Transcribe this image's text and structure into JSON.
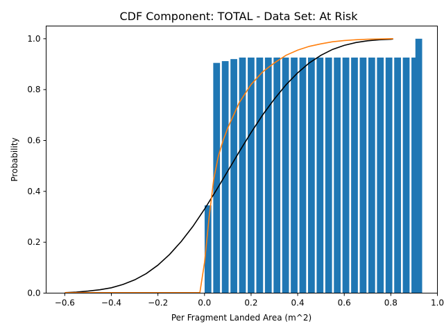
{
  "chart_data": {
    "type": "bar",
    "title": "CDF Component: TOTAL - Data Set: At Risk",
    "xlabel": "Per Fragment Landed Area (m^2)",
    "ylabel": "Probability",
    "xlim": [
      -0.68,
      1.0
    ],
    "ylim": [
      0,
      1.05
    ],
    "x_ticks": [
      -0.6,
      -0.4,
      -0.2,
      0.0,
      0.2,
      0.4,
      0.6,
      0.8,
      1.0
    ],
    "x_tick_labels": [
      "−0.6",
      "−0.4",
      "−0.2",
      "0.0",
      "0.2",
      "0.4",
      "0.6",
      "0.8",
      "1.0"
    ],
    "y_ticks": [
      0.0,
      0.2,
      0.4,
      0.6,
      0.8,
      1.0
    ],
    "y_tick_labels": [
      "0.0",
      "0.2",
      "0.4",
      "0.6",
      "0.8",
      "1.0"
    ],
    "grid": false,
    "bar_color": "#1f77b4",
    "bar_width": 0.029,
    "bars": {
      "x": [
        0.015,
        0.052,
        0.089,
        0.126,
        0.163,
        0.2,
        0.237,
        0.274,
        0.311,
        0.348,
        0.385,
        0.422,
        0.459,
        0.496,
        0.533,
        0.57,
        0.607,
        0.644,
        0.681,
        0.718,
        0.755,
        0.792,
        0.829,
        0.866,
        0.903,
        0.92
      ],
      "values": [
        0.345,
        0.905,
        0.912,
        0.92,
        0.926,
        0.926,
        0.926,
        0.926,
        0.926,
        0.926,
        0.926,
        0.926,
        0.926,
        0.926,
        0.926,
        0.926,
        0.926,
        0.926,
        0.926,
        0.926,
        0.926,
        0.926,
        0.926,
        0.926,
        0.926,
        1.0
      ]
    },
    "series": [
      {
        "type": "line",
        "color": "#000000",
        "x": [
          -0.6,
          -0.55,
          -0.5,
          -0.45,
          -0.4,
          -0.35,
          -0.3,
          -0.25,
          -0.2,
          -0.15,
          -0.1,
          -0.05,
          0.0,
          0.05,
          0.1,
          0.15,
          0.2,
          0.25,
          0.3,
          0.35,
          0.4,
          0.45,
          0.5,
          0.55,
          0.6,
          0.65,
          0.7,
          0.75,
          0.8,
          0.81
        ],
        "y": [
          0.002,
          0.004,
          0.008,
          0.013,
          0.021,
          0.034,
          0.052,
          0.077,
          0.11,
          0.152,
          0.203,
          0.262,
          0.33,
          0.404,
          0.48,
          0.557,
          0.631,
          0.701,
          0.763,
          0.819,
          0.866,
          0.905,
          0.935,
          0.958,
          0.974,
          0.985,
          0.992,
          0.996,
          0.998,
          0.999
        ]
      },
      {
        "type": "line",
        "color": "#ff7f0e",
        "x": [
          -0.6,
          -0.02,
          0.0,
          0.02,
          0.04,
          0.06,
          0.08,
          0.1,
          0.12,
          0.15,
          0.2,
          0.25,
          0.3,
          0.35,
          0.4,
          0.45,
          0.5,
          0.55,
          0.6,
          0.65,
          0.7,
          0.75,
          0.8,
          0.81
        ],
        "y": [
          0.002,
          0.002,
          0.12,
          0.3,
          0.45,
          0.54,
          0.6,
          0.65,
          0.69,
          0.75,
          0.82,
          0.87,
          0.905,
          0.935,
          0.955,
          0.97,
          0.98,
          0.988,
          0.993,
          0.996,
          0.998,
          0.999,
          1.0,
          1.0
        ]
      }
    ]
  }
}
